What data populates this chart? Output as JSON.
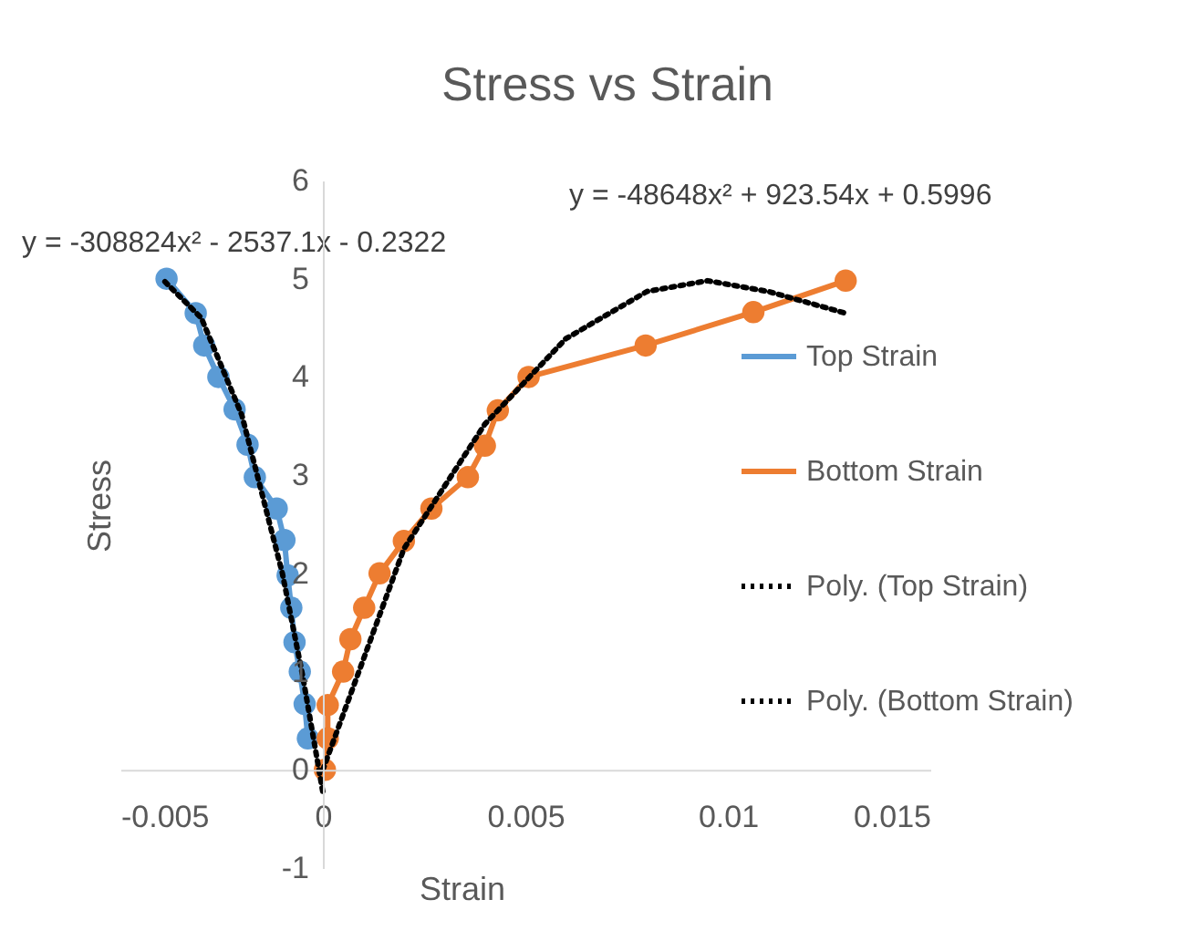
{
  "chart_data": {
    "type": "line",
    "title": "Stress vs Strain",
    "xlabel": "Strain",
    "ylabel": "Stress",
    "xlim": [
      -0.005,
      0.015
    ],
    "xticks": [
      -0.005,
      0,
      0.005,
      0.01,
      0.015
    ],
    "ylim": [
      -1,
      6
    ],
    "yticks": [
      -1,
      0,
      1,
      2,
      3,
      4,
      5,
      6
    ],
    "grid": false,
    "legend": "right",
    "annotations": [
      "y = -308824x² - 2537.1x - 0.2322",
      "y = -48648x² + 923.54x + 0.5996"
    ],
    "series": [
      {
        "name": "Top Strain",
        "color": "#5b9bd5",
        "marker": "circle",
        "line_style": "solid",
        "x": [
          -0.00386,
          -0.00314,
          -0.00293,
          -0.00258,
          -0.00218,
          -0.00186,
          -0.00168,
          -0.00114,
          -0.00095,
          -0.00087,
          -0.00078,
          -0.0007,
          -0.00057,
          -0.00045,
          -0.00037
        ],
        "values": [
          5.0,
          4.65,
          4.32,
          4.0,
          3.67,
          3.31,
          2.98,
          2.66,
          2.34,
          1.98,
          1.65,
          1.3,
          1.0,
          0.67,
          0.32
        ]
      },
      {
        "name": "Bottom Strain",
        "color": "#ed7d31",
        "marker": "circle",
        "line_style": "solid",
        "x": [
          5e-05,
          0.00012,
          0.00012,
          0.0005,
          0.00068,
          0.00102,
          0.0014,
          0.002,
          0.00268,
          0.00358,
          0.004,
          0.00432,
          0.00508,
          0.00797,
          0.01063,
          0.01291
        ],
        "values": [
          0,
          0.32,
          0.66,
          1.0,
          1.33,
          1.65,
          2.0,
          2.33,
          2.66,
          2.98,
          3.3,
          3.66,
          4.0,
          4.32,
          4.66,
          4.98
        ]
      },
      {
        "name": "Poly. (Top Strain)",
        "color": "#000000",
        "marker": "none",
        "line_style": "dotted",
        "x": [
          -0.0039,
          -0.003,
          -0.002,
          -0.001,
          -0.0005,
          0
        ],
        "values": [
          4.97,
          4.6,
          3.61,
          2.0,
          0.96,
          -0.23
        ]
      },
      {
        "name": "Poly. (Bottom Strain)",
        "color": "#000000",
        "marker": "none",
        "line_style": "dotted",
        "x": [
          0,
          0.002,
          0.004,
          0.006,
          0.008,
          0.0095,
          0.011,
          0.0129
        ],
        "values": [
          0.0,
          2.25,
          3.52,
          4.39,
          4.87,
          4.98,
          4.87,
          4.65
        ]
      }
    ]
  }
}
